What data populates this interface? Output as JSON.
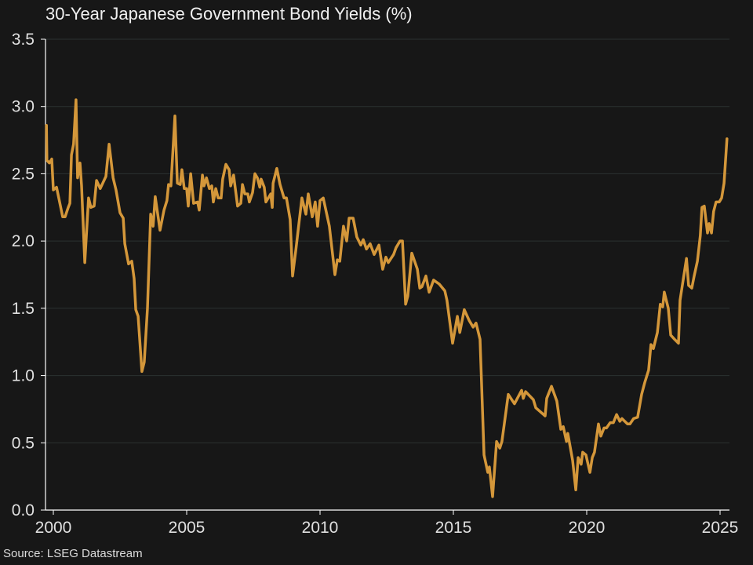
{
  "chart_data": {
    "type": "line",
    "title": "30-Year Japanese Government Bond Yields (%)",
    "source": "Source: LSEG Datastream",
    "xlabel": "",
    "ylabel": "",
    "xlim": [
      1999.7,
      2025.3
    ],
    "ylim": [
      0,
      3.5
    ],
    "x_ticks": [
      "2000",
      "2005",
      "2010",
      "2015",
      "2020",
      "2025"
    ],
    "y_ticks": [
      "0.0",
      "0.5",
      "1.0",
      "1.5",
      "2.0",
      "2.5",
      "3.0",
      "3.5"
    ],
    "grid": "horizontal",
    "legend": "none",
    "colors": {
      "background": "#171717",
      "line": "#d4973a",
      "grid": "#2b3231",
      "axis": "#ffffff"
    },
    "series": [
      {
        "points": [
          [
            1999.74,
            2.86
          ],
          [
            1999.76,
            2.6
          ],
          [
            1999.85,
            2.58
          ],
          [
            1999.94,
            2.61
          ],
          [
            2000.0,
            2.38
          ],
          [
            2000.12,
            2.4
          ],
          [
            2000.35,
            2.18
          ],
          [
            2000.44,
            2.18
          ],
          [
            2000.56,
            2.25
          ],
          [
            2000.62,
            2.28
          ],
          [
            2000.68,
            2.64
          ],
          [
            2000.76,
            2.72
          ],
          [
            2000.85,
            3.05
          ],
          [
            2000.91,
            2.47
          ],
          [
            2001.0,
            2.58
          ],
          [
            2001.06,
            2.41
          ],
          [
            2001.18,
            1.84
          ],
          [
            2001.32,
            2.32
          ],
          [
            2001.41,
            2.25
          ],
          [
            2001.53,
            2.26
          ],
          [
            2001.62,
            2.45
          ],
          [
            2001.76,
            2.39
          ],
          [
            2001.97,
            2.48
          ],
          [
            2002.09,
            2.72
          ],
          [
            2002.24,
            2.47
          ],
          [
            2002.35,
            2.38
          ],
          [
            2002.5,
            2.21
          ],
          [
            2002.62,
            2.17
          ],
          [
            2002.68,
            1.98
          ],
          [
            2002.82,
            1.83
          ],
          [
            2002.94,
            1.85
          ],
          [
            2003.03,
            1.72
          ],
          [
            2003.09,
            1.49
          ],
          [
            2003.18,
            1.44
          ],
          [
            2003.32,
            1.03
          ],
          [
            2003.41,
            1.1
          ],
          [
            2003.53,
            1.5
          ],
          [
            2003.65,
            2.2
          ],
          [
            2003.74,
            2.11
          ],
          [
            2003.82,
            2.33
          ],
          [
            2004.0,
            2.08
          ],
          [
            2004.15,
            2.23
          ],
          [
            2004.26,
            2.3
          ],
          [
            2004.32,
            2.42
          ],
          [
            2004.41,
            2.41
          ],
          [
            2004.56,
            2.93
          ],
          [
            2004.65,
            2.43
          ],
          [
            2004.76,
            2.42
          ],
          [
            2004.82,
            2.53
          ],
          [
            2004.91,
            2.39
          ],
          [
            2005.0,
            2.39
          ],
          [
            2005.06,
            2.26
          ],
          [
            2005.15,
            2.5
          ],
          [
            2005.26,
            2.28
          ],
          [
            2005.41,
            2.29
          ],
          [
            2005.47,
            2.23
          ],
          [
            2005.59,
            2.49
          ],
          [
            2005.65,
            2.41
          ],
          [
            2005.74,
            2.47
          ],
          [
            2005.85,
            2.39
          ],
          [
            2005.94,
            2.41
          ],
          [
            2006.0,
            2.29
          ],
          [
            2006.09,
            2.39
          ],
          [
            2006.18,
            2.32
          ],
          [
            2006.29,
            2.32
          ],
          [
            2006.35,
            2.46
          ],
          [
            2006.47,
            2.57
          ],
          [
            2006.59,
            2.53
          ],
          [
            2006.65,
            2.41
          ],
          [
            2006.76,
            2.49
          ],
          [
            2006.91,
            2.26
          ],
          [
            2007.03,
            2.28
          ],
          [
            2007.09,
            2.42
          ],
          [
            2007.18,
            2.35
          ],
          [
            2007.29,
            2.35
          ],
          [
            2007.35,
            2.29
          ],
          [
            2007.47,
            2.36
          ],
          [
            2007.56,
            2.5
          ],
          [
            2007.65,
            2.47
          ],
          [
            2007.74,
            2.4
          ],
          [
            2007.79,
            2.46
          ],
          [
            2007.91,
            2.4
          ],
          [
            2007.97,
            2.29
          ],
          [
            2008.15,
            2.35
          ],
          [
            2008.21,
            2.25
          ],
          [
            2008.24,
            2.43
          ],
          [
            2008.38,
            2.54
          ],
          [
            2008.5,
            2.42
          ],
          [
            2008.65,
            2.32
          ],
          [
            2008.74,
            2.32
          ],
          [
            2008.88,
            2.16
          ],
          [
            2008.97,
            1.74
          ],
          [
            2009.09,
            1.93
          ],
          [
            2009.32,
            2.32
          ],
          [
            2009.47,
            2.2
          ],
          [
            2009.56,
            2.35
          ],
          [
            2009.71,
            2.18
          ],
          [
            2009.82,
            2.29
          ],
          [
            2009.91,
            2.11
          ],
          [
            2010.0,
            2.3
          ],
          [
            2010.12,
            2.32
          ],
          [
            2010.35,
            2.11
          ],
          [
            2010.56,
            1.75
          ],
          [
            2010.65,
            1.86
          ],
          [
            2010.74,
            1.85
          ],
          [
            2010.88,
            2.11
          ],
          [
            2011.0,
            2.0
          ],
          [
            2011.09,
            2.17
          ],
          [
            2011.24,
            2.17
          ],
          [
            2011.38,
            2.03
          ],
          [
            2011.53,
            1.97
          ],
          [
            2011.62,
            2.01
          ],
          [
            2011.74,
            1.94
          ],
          [
            2011.88,
            1.98
          ],
          [
            2012.03,
            1.9
          ],
          [
            2012.21,
            1.97
          ],
          [
            2012.35,
            1.79
          ],
          [
            2012.47,
            1.88
          ],
          [
            2012.56,
            1.84
          ],
          [
            2012.76,
            1.9
          ],
          [
            2012.85,
            1.95
          ],
          [
            2013.0,
            2.0
          ],
          [
            2013.09,
            2.0
          ],
          [
            2013.21,
            1.53
          ],
          [
            2013.29,
            1.59
          ],
          [
            2013.44,
            1.91
          ],
          [
            2013.65,
            1.79
          ],
          [
            2013.74,
            1.65
          ],
          [
            2013.82,
            1.66
          ],
          [
            2013.97,
            1.74
          ],
          [
            2014.09,
            1.62
          ],
          [
            2014.26,
            1.71
          ],
          [
            2014.47,
            1.68
          ],
          [
            2014.68,
            1.63
          ],
          [
            2014.76,
            1.56
          ],
          [
            2014.97,
            1.24
          ],
          [
            2015.15,
            1.44
          ],
          [
            2015.24,
            1.32
          ],
          [
            2015.41,
            1.49
          ],
          [
            2015.59,
            1.41
          ],
          [
            2015.74,
            1.36
          ],
          [
            2015.85,
            1.39
          ],
          [
            2016.0,
            1.27
          ],
          [
            2016.15,
            0.41
          ],
          [
            2016.29,
            0.28
          ],
          [
            2016.35,
            0.32
          ],
          [
            2016.47,
            0.1
          ],
          [
            2016.62,
            0.51
          ],
          [
            2016.74,
            0.46
          ],
          [
            2016.82,
            0.51
          ],
          [
            2017.06,
            0.86
          ],
          [
            2017.29,
            0.79
          ],
          [
            2017.56,
            0.89
          ],
          [
            2017.62,
            0.83
          ],
          [
            2017.71,
            0.88
          ],
          [
            2018.0,
            0.82
          ],
          [
            2018.09,
            0.76
          ],
          [
            2018.44,
            0.7
          ],
          [
            2018.5,
            0.83
          ],
          [
            2018.68,
            0.92
          ],
          [
            2018.88,
            0.81
          ],
          [
            2019.03,
            0.6
          ],
          [
            2019.12,
            0.62
          ],
          [
            2019.24,
            0.51
          ],
          [
            2019.29,
            0.57
          ],
          [
            2019.47,
            0.37
          ],
          [
            2019.59,
            0.15
          ],
          [
            2019.68,
            0.39
          ],
          [
            2019.79,
            0.34
          ],
          [
            2019.85,
            0.43
          ],
          [
            2019.97,
            0.41
          ],
          [
            2020.12,
            0.28
          ],
          [
            2020.21,
            0.39
          ],
          [
            2020.29,
            0.43
          ],
          [
            2020.44,
            0.64
          ],
          [
            2020.53,
            0.55
          ],
          [
            2020.65,
            0.61
          ],
          [
            2020.74,
            0.61
          ],
          [
            2020.88,
            0.65
          ],
          [
            2021.0,
            0.65
          ],
          [
            2021.12,
            0.71
          ],
          [
            2021.24,
            0.66
          ],
          [
            2021.32,
            0.68
          ],
          [
            2021.53,
            0.64
          ],
          [
            2021.62,
            0.64
          ],
          [
            2021.76,
            0.68
          ],
          [
            2021.91,
            0.69
          ],
          [
            2022.06,
            0.86
          ],
          [
            2022.18,
            0.95
          ],
          [
            2022.32,
            1.04
          ],
          [
            2022.41,
            1.23
          ],
          [
            2022.5,
            1.2
          ],
          [
            2022.65,
            1.32
          ],
          [
            2022.76,
            1.53
          ],
          [
            2022.85,
            1.51
          ],
          [
            2022.91,
            1.62
          ],
          [
            2023.06,
            1.5
          ],
          [
            2023.15,
            1.3
          ],
          [
            2023.29,
            1.27
          ],
          [
            2023.44,
            1.24
          ],
          [
            2023.5,
            1.56
          ],
          [
            2023.74,
            1.87
          ],
          [
            2023.82,
            1.67
          ],
          [
            2023.94,
            1.65
          ],
          [
            2024.03,
            1.74
          ],
          [
            2024.15,
            1.85
          ],
          [
            2024.26,
            2.04
          ],
          [
            2024.32,
            2.25
          ],
          [
            2024.41,
            2.26
          ],
          [
            2024.53,
            2.06
          ],
          [
            2024.59,
            2.13
          ],
          [
            2024.68,
            2.06
          ],
          [
            2024.76,
            2.22
          ],
          [
            2024.85,
            2.29
          ],
          [
            2024.97,
            2.29
          ],
          [
            2025.06,
            2.32
          ],
          [
            2025.15,
            2.43
          ],
          [
            2025.26,
            2.76
          ]
        ]
      }
    ]
  }
}
